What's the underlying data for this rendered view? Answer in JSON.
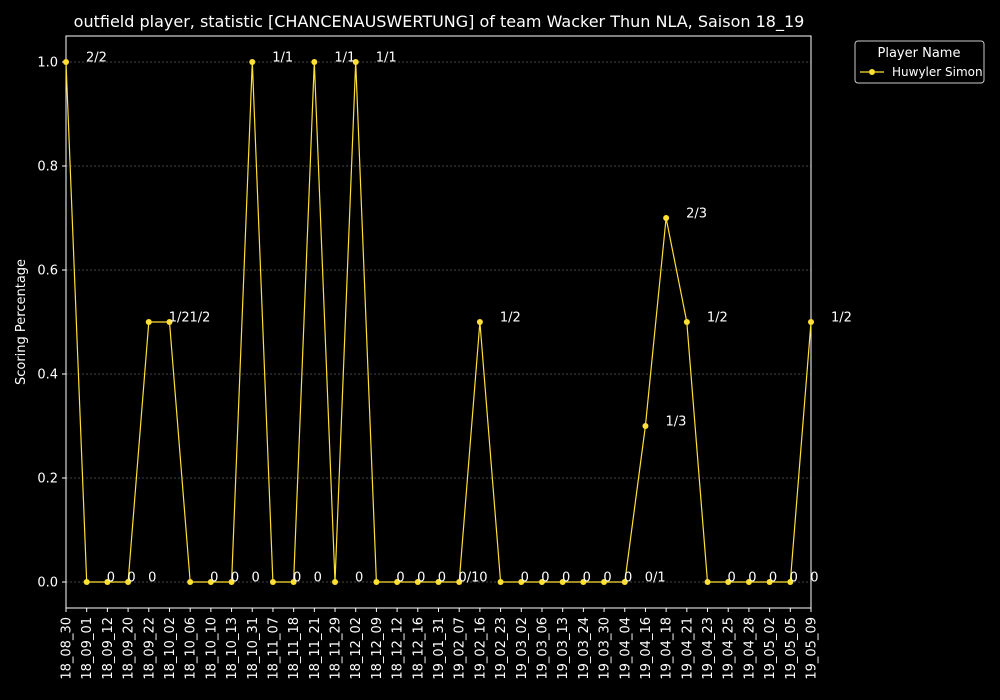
{
  "chart_data": {
    "type": "line",
    "title": "outfield player, statistic [CHANCENAUSWERTUNG] of team Wacker Thun NLA, Saison 18_19",
    "xlabel": "",
    "ylabel": "Scoring Percentage",
    "ylim": [
      -0.05,
      1.05
    ],
    "yticks": [
      "0.0",
      "0.2",
      "0.4",
      "0.6",
      "0.8",
      "1.0"
    ],
    "grid": true,
    "legend": {
      "title": "Player Name",
      "position": "top-right"
    },
    "colors": {
      "background": "#000000",
      "line": "#ffe033",
      "grid": "#888888",
      "axis": "#ffffff"
    },
    "categories": [
      "18_08_30",
      "18_09_01",
      "18_09_12",
      "18_09_20",
      "18_09_22",
      "18_10_02",
      "18_10_06",
      "18_10_10",
      "18_10_13",
      "18_10_31",
      "18_11_07",
      "18_11_18",
      "18_11_21",
      "18_11_29",
      "18_12_02",
      "18_12_09",
      "18_12_12",
      "18_12_16",
      "19_01_31",
      "19_02_07",
      "19_02_16",
      "19_02_23",
      "19_03_02",
      "19_03_06",
      "19_03_13",
      "19_03_24",
      "19_03_30",
      "19_04_04",
      "19_04_16",
      "19_04_18",
      "19_04_21",
      "19_04_23",
      "19_04_25",
      "19_04_28",
      "19_05_02",
      "19_05_05",
      "19_05_09"
    ],
    "series": [
      {
        "name": "Huwyler Simon",
        "values": [
          1.0,
          0,
          0,
          0,
          0.5,
          0.5,
          0,
          0,
          0,
          1.0,
          0,
          0,
          1.0,
          0,
          1.0,
          0,
          0,
          0,
          0,
          0,
          0.5,
          0,
          0,
          0,
          0,
          0,
          0,
          0,
          0.3,
          0.7,
          0.5,
          0,
          0,
          0,
          0,
          0,
          0.5
        ]
      }
    ],
    "annotations": [
      {
        "text": "2/2",
        "x": 0,
        "y": 1.0
      },
      {
        "text": "0",
        "x": 1,
        "y": 0
      },
      {
        "text": "0",
        "x": 2,
        "y": 0
      },
      {
        "text": "0",
        "x": 3,
        "y": 0
      },
      {
        "text": "1/2",
        "x": 4,
        "y": 0.5
      },
      {
        "text": "1/2",
        "x": 5,
        "y": 0.5
      },
      {
        "text": "0",
        "x": 6,
        "y": 0
      },
      {
        "text": "0",
        "x": 7,
        "y": 0
      },
      {
        "text": "0",
        "x": 8,
        "y": 0
      },
      {
        "text": "1/1",
        "x": 9,
        "y": 1.0
      },
      {
        "text": "0",
        "x": 10,
        "y": 0
      },
      {
        "text": "0",
        "x": 11,
        "y": 0
      },
      {
        "text": "1/1",
        "x": 12,
        "y": 1.0
      },
      {
        "text": "0",
        "x": 13,
        "y": 0
      },
      {
        "text": "1/1",
        "x": 14,
        "y": 1.0
      },
      {
        "text": "0",
        "x": 15,
        "y": 0
      },
      {
        "text": "0",
        "x": 16,
        "y": 0
      },
      {
        "text": "0",
        "x": 17,
        "y": 0
      },
      {
        "text": "0/1",
        "x": 18,
        "y": 0
      },
      {
        "text": "0",
        "x": 19,
        "y": 0
      },
      {
        "text": "1/2",
        "x": 20,
        "y": 0.5
      },
      {
        "text": "0",
        "x": 21,
        "y": 0
      },
      {
        "text": "0",
        "x": 22,
        "y": 0
      },
      {
        "text": "0",
        "x": 23,
        "y": 0
      },
      {
        "text": "0",
        "x": 24,
        "y": 0
      },
      {
        "text": "0",
        "x": 25,
        "y": 0
      },
      {
        "text": "0",
        "x": 26,
        "y": 0
      },
      {
        "text": "0/1",
        "x": 27,
        "y": 0
      },
      {
        "text": "1/3",
        "x": 28,
        "y": 0.3
      },
      {
        "text": "2/3",
        "x": 29,
        "y": 0.7
      },
      {
        "text": "1/2",
        "x": 30,
        "y": 0.5
      },
      {
        "text": "0",
        "x": 31,
        "y": 0
      },
      {
        "text": "0",
        "x": 32,
        "y": 0
      },
      {
        "text": "0",
        "x": 33,
        "y": 0
      },
      {
        "text": "0",
        "x": 34,
        "y": 0
      },
      {
        "text": "0",
        "x": 35,
        "y": 0
      },
      {
        "text": "1/2",
        "x": 36,
        "y": 0.5
      }
    ]
  }
}
